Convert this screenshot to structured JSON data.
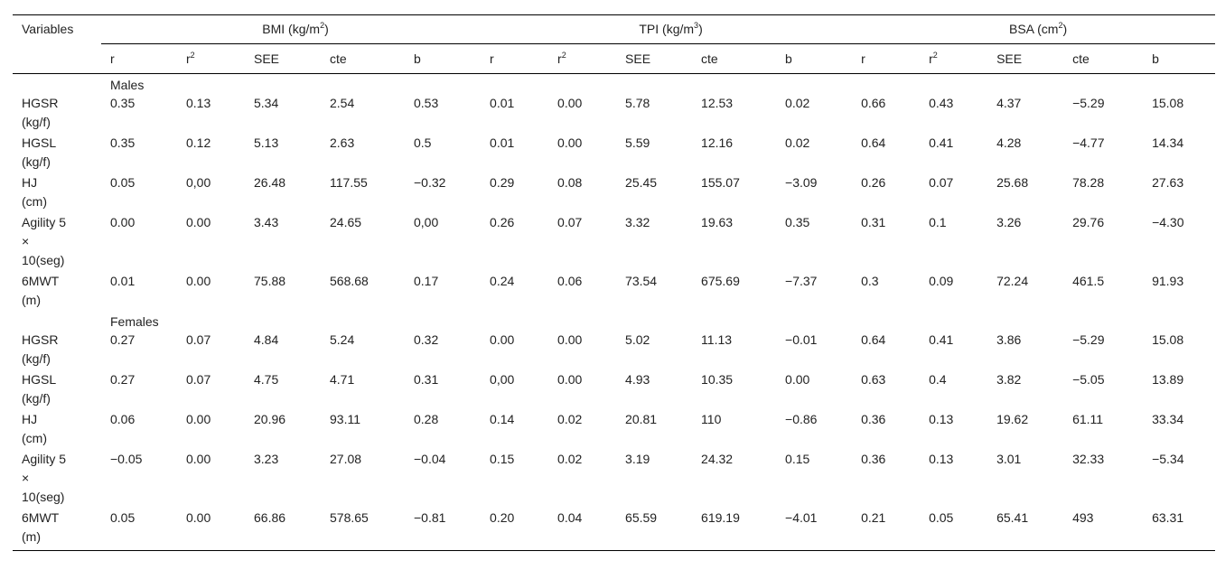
{
  "header": {
    "variables_label": "Variables",
    "groups": [
      {
        "name": "BMI (kg/m",
        "sup": "2",
        "close": ")"
      },
      {
        "name": "TPI (kg/m",
        "sup": "3",
        "close": ")"
      },
      {
        "name": "BSA (cm",
        "sup": "2",
        "close": ")"
      }
    ],
    "subcols": [
      "r",
      "r",
      "SEE",
      "cte",
      "b"
    ],
    "subcol_r2_sup": "2"
  },
  "sections": [
    {
      "label": "Males",
      "rows": [
        {
          "var": [
            "HGSR",
            "(kg/f)"
          ],
          "vals": [
            "0.35",
            "0.13",
            "5.34",
            "2.54",
            "0.53",
            "0.01",
            "0.00",
            "5.78",
            "12.53",
            "0.02",
            "0.66",
            "0.43",
            "4.37",
            "−5.29",
            "15.08"
          ]
        },
        {
          "var": [
            "HGSL",
            "(kg/f)"
          ],
          "vals": [
            "0.35",
            "0.12",
            "5.13",
            "2.63",
            "0.5",
            "0.01",
            "0.00",
            "5.59",
            "12.16",
            "0.02",
            "0.64",
            "0.41",
            "4.28",
            "−4.77",
            "14.34"
          ]
        },
        {
          "var": [
            "HJ",
            "(cm)"
          ],
          "vals": [
            "0.05",
            "0,00",
            "26.48",
            "117.55",
            "−0.32",
            "0.29",
            "0.08",
            "25.45",
            "155.07",
            "−3.09",
            "0.26",
            "0.07",
            "25.68",
            "78.28",
            "27.63"
          ]
        },
        {
          "var": [
            "Agility 5",
            "×",
            "10(seg)"
          ],
          "vals": [
            "0.00",
            "0.00",
            "3.43",
            "24.65",
            "0,00",
            "0.26",
            "0.07",
            "3.32",
            "19.63",
            "0.35",
            "0.31",
            "0.1",
            "3.26",
            "29.76",
            "−4.30"
          ]
        },
        {
          "var": [
            "6MWT",
            "(m)"
          ],
          "vals": [
            "0.01",
            "0.00",
            "75.88",
            "568.68",
            "0.17",
            "0.24",
            "0.06",
            "73.54",
            "675.69",
            "−7.37",
            "0.3",
            "0.09",
            "72.24",
            "461.5",
            "91.93"
          ]
        }
      ]
    },
    {
      "label": "Females",
      "rows": [
        {
          "var": [
            "HGSR",
            "(kg/f)"
          ],
          "vals": [
            "0.27",
            "0.07",
            "4.84",
            "5.24",
            "0.32",
            "0.00",
            "0.00",
            "5.02",
            "11.13",
            "−0.01",
            "0.64",
            "0.41",
            "3.86",
            "−5.29",
            "15.08"
          ]
        },
        {
          "var": [
            "HGSL",
            "(kg/f)"
          ],
          "vals": [
            "0.27",
            "0.07",
            "4.75",
            "4.71",
            "0.31",
            "0,00",
            "0.00",
            "4.93",
            "10.35",
            "0.00",
            "0.63",
            "0.4",
            "3.82",
            "−5.05",
            "13.89"
          ]
        },
        {
          "var": [
            "HJ",
            "(cm)"
          ],
          "vals": [
            "0.06",
            "0.00",
            "20.96",
            "93.11",
            "0.28",
            "0.14",
            "0.02",
            "20.81",
            "110",
            "−0.86",
            "0.36",
            "0.13",
            "19.62",
            "61.11",
            "33.34"
          ]
        },
        {
          "var": [
            "Agility 5",
            "×",
            "10(seg)"
          ],
          "vals": [
            "−0.05",
            "0.00",
            "3.23",
            "27.08",
            "−0.04",
            "0.15",
            "0.02",
            "3.19",
            "24.32",
            "0.15",
            "0.36",
            "0.13",
            "3.01",
            "32.33",
            "−5.34"
          ]
        },
        {
          "var": [
            "6MWT",
            "(m)"
          ],
          "vals": [
            "0.05",
            "0.00",
            "66.86",
            "578.65",
            "−0.81",
            "0.20",
            "0.04",
            "65.59",
            "619.19",
            "−4.01",
            "0.21",
            "0.05",
            "65.41",
            "493",
            "63.31"
          ]
        }
      ]
    }
  ]
}
